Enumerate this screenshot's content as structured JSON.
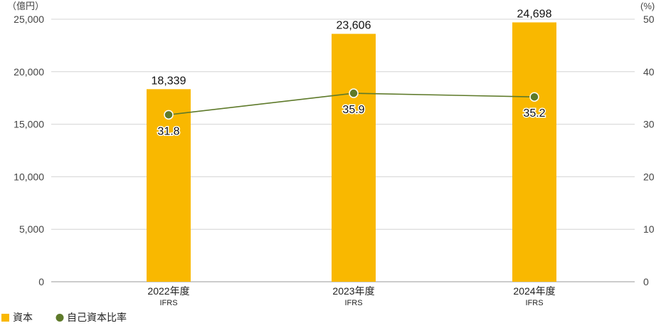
{
  "chart_data": {
    "type": "bar",
    "categories": [
      "2022年度",
      "2023年度",
      "2024年度"
    ],
    "category_sub": [
      "IFRS",
      "IFRS",
      "IFRS"
    ],
    "series": [
      {
        "name": "資本",
        "kind": "bar",
        "axis": "left",
        "color": "#F9B800",
        "values": [
          18339,
          23606,
          24698
        ],
        "labels": [
          "18,339",
          "23,606",
          "24,698"
        ]
      },
      {
        "name": "自己資本比率",
        "kind": "line",
        "axis": "right",
        "color": "#5E7A2A",
        "values": [
          31.8,
          35.9,
          35.2
        ],
        "labels": [
          "31.8",
          "35.9",
          "35.2"
        ]
      }
    ],
    "y_left": {
      "unit": "（億円）",
      "range": [
        0,
        25000
      ],
      "ticks": [
        0,
        5000,
        10000,
        15000,
        20000,
        25000
      ],
      "tick_labels": [
        "0",
        "5,000",
        "10,000",
        "15,000",
        "20,000",
        "25,000"
      ]
    },
    "y_right": {
      "unit": "(%)",
      "range": [
        0,
        50
      ],
      "ticks": [
        0,
        10,
        20,
        30,
        40,
        50
      ],
      "tick_labels": [
        "0",
        "10",
        "20",
        "30",
        "40",
        "50"
      ]
    },
    "grid": true,
    "legend_position": "bottom-left"
  }
}
